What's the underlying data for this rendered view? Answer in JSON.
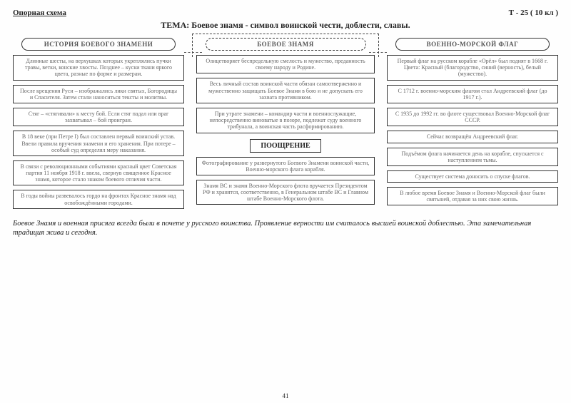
{
  "header": {
    "left": "Опорная схема",
    "right": "Т - 25 ( 10 кл )",
    "theme": "ТЕМА: Боевое знамя - символ воинской чести, доблести, славы."
  },
  "columns": {
    "left": {
      "title": "ИСТОРИЯ БОЕВОГО ЗНАМЕНИ",
      "boxes": [
        "Длинные шесты, на верхушках которых укреплялись пучки травы, ветки, конские хвосты. Позднее – куски ткани яркого цвета, разные по форме и размерам.",
        "После крещения Руси – изображались лики святых, Богородицы и Спасителя. Затем стали наноситься тексты и молитвы.",
        "Стяг – «стягивали» к месту бой. Если стяг падал или враг захватывал – бой проигран.",
        "В 18 веке (при Петре I) был составлен первый воинский устав. Ввели правила вручения знамени и его хранения. При потере – особый суд определял меру наказания.",
        "В связи с революционными событиями красный цвет Советская партия 11 ноября 1918 г. ввела, свернув священное Красное знамя, которое стало знаком боевого отличия части.",
        "В годы войны развевалось гордо на фронтах Красное знамя над освобождёнными городами."
      ]
    },
    "center": {
      "title": "БОЕВОЕ  ЗНАМЯ",
      "boxes_top": [
        "Олицетворяет беспредельную смелость и мужество, преданность своему народу и Родине.",
        "Весь личный состав воинской части обязан самоотверженно и мужественно защищать Боевое Знамя в бою и не допускать его захвата противником.",
        "При утрате знамени – командир части и военнослужащие, непосредственно виноватые в позоре, подлежат суду военного трибунала, а воинская часть расформированию."
      ],
      "reward": "ПООЩРЕНИЕ",
      "boxes_bottom": [
        "Фотографирование у развернутого Боевого Знамени воинской части, Военно-морского флага корабля.",
        "Знамя ВС и знамя Военно-Морского флота вручается Президентом РФ и хранятся, соответственно, в Генеральном штабе ВС и Главном штабе Военно-Морского флота."
      ]
    },
    "right": {
      "title": "ВОЕННО-МОРСКОЙ ФЛАГ",
      "boxes": [
        "Первый флаг на русском корабле «Орёл» был поднят в 1668 г. Цвета: Красный (благородство, синий (верность), белый (мужество).",
        "С 1712 г. военно-морским флагом стал Андреевский флаг (до 1917 г.).",
        "С 1935 до 1992 гг. во флоте существовал Военно-Морской флаг СССР.",
        "Сейчас возвращён Андреевский флаг.",
        "Подъёмом флага начинается день на корабле, спускается с наступлением тьмы.",
        "Существует система доносить о спуске флагов.",
        "В любое время Боевое Знамя и Военно-Морской флаг были святыней, отдавая за них свою жизнь."
      ]
    }
  },
  "footer": "Боевое Знамя и военная присяга всегда были в почете у русского воинства. Проявление верности им считалось высшей воинской доблестью. Эта замечательная традиция жива и сегодня.",
  "page_number": "41"
}
